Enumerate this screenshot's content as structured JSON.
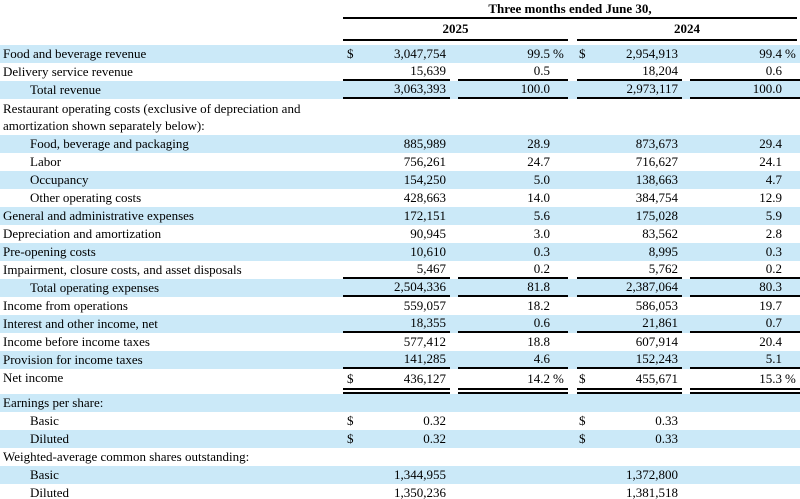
{
  "header": {
    "period_title": "Three months ended June 30,",
    "years": [
      "2025",
      "2024"
    ]
  },
  "colors": {
    "row_highlight": "#cbe9f8",
    "rule": "#000000",
    "text": "#000000"
  },
  "rows": [
    {
      "label": "Food and beverage revenue",
      "indent": 0,
      "shade": true,
      "rule": "",
      "cur1": "$",
      "amt1": "3,047,754",
      "pct1": "99.5",
      "sym1": "%",
      "cur2": "$",
      "amt2": "2,954,913",
      "pct2": "99.4",
      "sym2": "%"
    },
    {
      "label": "Delivery service revenue",
      "indent": 0,
      "shade": false,
      "rule": "single",
      "cur1": "",
      "amt1": "15,639",
      "pct1": "0.5",
      "sym1": "",
      "cur2": "",
      "amt2": "18,204",
      "pct2": "0.6",
      "sym2": ""
    },
    {
      "label": "Total revenue",
      "indent": 1,
      "shade": true,
      "rule": "single",
      "cur1": "",
      "amt1": "3,063,393",
      "pct1": "100.0",
      "sym1": "",
      "cur2": "",
      "amt2": "2,973,117",
      "pct2": "100.0",
      "sym2": ""
    },
    {
      "label": "Restaurant operating costs (exclusive of depreciation and amortization shown separately below):",
      "indent": 0,
      "shade": false,
      "tall": true,
      "rule": "",
      "cur1": "",
      "amt1": "",
      "pct1": "",
      "sym1": "",
      "cur2": "",
      "amt2": "",
      "pct2": "",
      "sym2": ""
    },
    {
      "label": "Food, beverage and packaging",
      "indent": 1,
      "shade": true,
      "rule": "",
      "cur1": "",
      "amt1": "885,989",
      "pct1": "28.9",
      "sym1": "",
      "cur2": "",
      "amt2": "873,673",
      "pct2": "29.4",
      "sym2": ""
    },
    {
      "label": "Labor",
      "indent": 1,
      "shade": false,
      "rule": "",
      "cur1": "",
      "amt1": "756,261",
      "pct1": "24.7",
      "sym1": "",
      "cur2": "",
      "amt2": "716,627",
      "pct2": "24.1",
      "sym2": ""
    },
    {
      "label": "Occupancy",
      "indent": 1,
      "shade": true,
      "rule": "",
      "cur1": "",
      "amt1": "154,250",
      "pct1": "5.0",
      "sym1": "",
      "cur2": "",
      "amt2": "138,663",
      "pct2": "4.7",
      "sym2": ""
    },
    {
      "label": "Other operating costs",
      "indent": 1,
      "shade": false,
      "rule": "",
      "cur1": "",
      "amt1": "428,663",
      "pct1": "14.0",
      "sym1": "",
      "cur2": "",
      "amt2": "384,754",
      "pct2": "12.9",
      "sym2": ""
    },
    {
      "label": "General and administrative expenses",
      "indent": 0,
      "shade": true,
      "rule": "",
      "cur1": "",
      "amt1": "172,151",
      "pct1": "5.6",
      "sym1": "",
      "cur2": "",
      "amt2": "175,028",
      "pct2": "5.9",
      "sym2": ""
    },
    {
      "label": "Depreciation and amortization",
      "indent": 0,
      "shade": false,
      "rule": "",
      "cur1": "",
      "amt1": "90,945",
      "pct1": "3.0",
      "sym1": "",
      "cur2": "",
      "amt2": "83,562",
      "pct2": "2.8",
      "sym2": ""
    },
    {
      "label": "Pre-opening costs",
      "indent": 0,
      "shade": true,
      "rule": "",
      "cur1": "",
      "amt1": "10,610",
      "pct1": "0.3",
      "sym1": "",
      "cur2": "",
      "amt2": "8,995",
      "pct2": "0.3",
      "sym2": ""
    },
    {
      "label": "Impairment, closure costs, and asset disposals",
      "indent": 0,
      "shade": false,
      "rule": "single",
      "cur1": "",
      "amt1": "5,467",
      "pct1": "0.2",
      "sym1": "",
      "cur2": "",
      "amt2": "5,762",
      "pct2": "0.2",
      "sym2": ""
    },
    {
      "label": "Total operating expenses",
      "indent": 1,
      "shade": true,
      "rule": "single",
      "cur1": "",
      "amt1": "2,504,336",
      "pct1": "81.8",
      "sym1": "",
      "cur2": "",
      "amt2": "2,387,064",
      "pct2": "80.3",
      "sym2": ""
    },
    {
      "label": "Income from operations",
      "indent": 0,
      "shade": false,
      "rule": "",
      "cur1": "",
      "amt1": "559,057",
      "pct1": "18.2",
      "sym1": "",
      "cur2": "",
      "amt2": "586,053",
      "pct2": "19.7",
      "sym2": ""
    },
    {
      "label": "Interest and other income, net",
      "indent": 0,
      "shade": true,
      "rule": "single",
      "cur1": "",
      "amt1": "18,355",
      "pct1": "0.6",
      "sym1": "",
      "cur2": "",
      "amt2": "21,861",
      "pct2": "0.7",
      "sym2": ""
    },
    {
      "label": "Income before income taxes",
      "indent": 0,
      "shade": false,
      "rule": "",
      "cur1": "",
      "amt1": "577,412",
      "pct1": "18.8",
      "sym1": "",
      "cur2": "",
      "amt2": "607,914",
      "pct2": "20.4",
      "sym2": ""
    },
    {
      "label": "Provision for income taxes",
      "indent": 0,
      "shade": true,
      "rule": "single",
      "cur1": "",
      "amt1": "141,285",
      "pct1": "4.6",
      "sym1": "",
      "cur2": "",
      "amt2": "152,243",
      "pct2": "5.1",
      "sym2": ""
    },
    {
      "label": "Net income",
      "indent": 0,
      "shade": false,
      "rule": "double",
      "cur1": "$",
      "amt1": "436,127",
      "pct1": "14.2",
      "sym1": "%",
      "cur2": "$",
      "amt2": "455,671",
      "pct2": "15.3",
      "sym2": "%"
    },
    {
      "label": "Earnings per share:",
      "indent": 0,
      "shade": true,
      "rule": "",
      "cur1": "",
      "amt1": "",
      "pct1": "",
      "sym1": "",
      "cur2": "",
      "amt2": "",
      "pct2": "",
      "sym2": ""
    },
    {
      "label": "Basic",
      "indent": 1,
      "shade": false,
      "rule": "",
      "cur1": "$",
      "amt1": "0.32",
      "pct1": "",
      "sym1": "",
      "cur2": "$",
      "amt2": "0.33",
      "pct2": "",
      "sym2": ""
    },
    {
      "label": "Diluted",
      "indent": 1,
      "shade": true,
      "rule": "",
      "cur1": "$",
      "amt1": "0.32",
      "pct1": "",
      "sym1": "",
      "cur2": "$",
      "amt2": "0.33",
      "pct2": "",
      "sym2": ""
    },
    {
      "label": "Weighted-average common shares outstanding:",
      "indent": 0,
      "shade": false,
      "rule": "",
      "cur1": "",
      "amt1": "",
      "pct1": "",
      "sym1": "",
      "cur2": "",
      "amt2": "",
      "pct2": "",
      "sym2": ""
    },
    {
      "label": "Basic",
      "indent": 1,
      "shade": true,
      "rule": "",
      "cur1": "",
      "amt1": "1,344,955",
      "pct1": "",
      "sym1": "",
      "cur2": "",
      "amt2": "1,372,800",
      "pct2": "",
      "sym2": ""
    },
    {
      "label": "Diluted",
      "indent": 1,
      "shade": false,
      "rule": "",
      "cur1": "",
      "amt1": "1,350,236",
      "pct1": "",
      "sym1": "",
      "cur2": "",
      "amt2": "1,381,518",
      "pct2": "",
      "sym2": ""
    }
  ]
}
